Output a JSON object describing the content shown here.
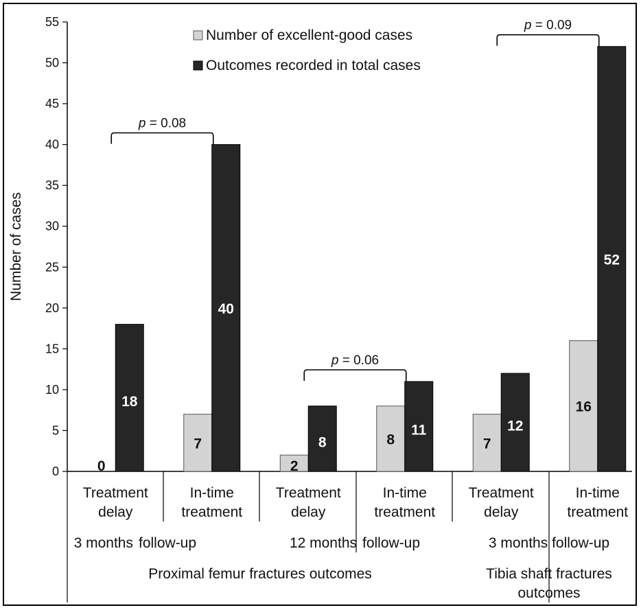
{
  "chart_data": {
    "type": "bar",
    "ylabel": "Number of cases",
    "ylim": [
      0,
      55
    ],
    "yticks": [
      0,
      5,
      10,
      15,
      20,
      25,
      30,
      35,
      40,
      45,
      50,
      55
    ],
    "grid": false,
    "legend_position": "top",
    "categories": [
      {
        "line1": "Treatment",
        "line2": "delay"
      },
      {
        "line1": "In-time",
        "line2": "treatment"
      },
      {
        "line1": "Treatment",
        "line2": "delay"
      },
      {
        "line1": "In-time",
        "line2": "treatment"
      },
      {
        "line1": "Treatment",
        "line2": "delay"
      },
      {
        "line1": "In-time",
        "line2": "treatment"
      }
    ],
    "followup_labels": [
      "3 months",
      "follow-up",
      "12 months",
      "follow-up",
      "3 months follow-up"
    ],
    "group_labels": [
      "Proximal femur fractures outcomes",
      "Tibia shaft fractures",
      "outcomes"
    ],
    "series": [
      {
        "name": "Number of excellent-good cases",
        "color": "#d3d3d3",
        "values": [
          0,
          7,
          2,
          8,
          7,
          16
        ]
      },
      {
        "name": "Outcomes recorded in total cases",
        "color": "#262626",
        "values": [
          18,
          40,
          8,
          11,
          12,
          52
        ]
      }
    ],
    "annotations": [
      {
        "p": "p",
        "text": " = 0.08",
        "from_category": 0,
        "to_category": 1
      },
      {
        "p": "p",
        "text": " = 0.06",
        "from_category": 2,
        "to_category": 3
      },
      {
        "p": "p",
        "text": " = 0.09",
        "from_category": 4,
        "to_category": 5
      }
    ]
  }
}
